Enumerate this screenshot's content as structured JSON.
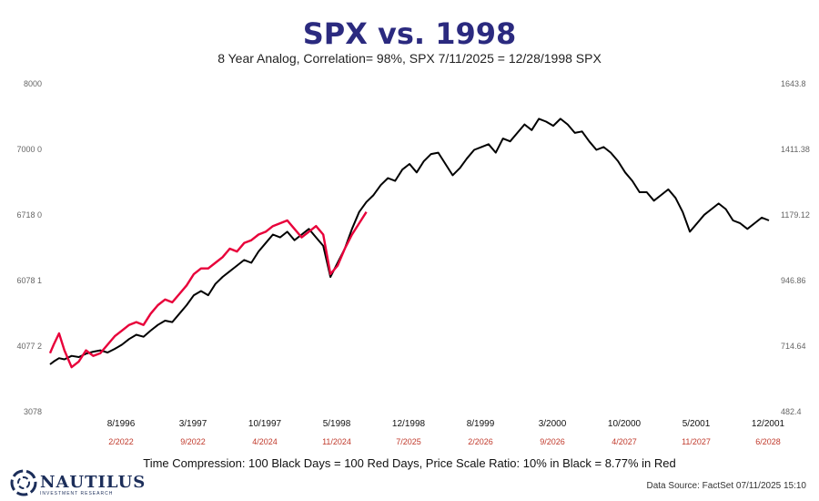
{
  "title": "SPX vs. 1998",
  "subtitle": "8 Year Analog, Correlation= 98%, SPX 7/11/2025 = 12/28/1998 SPX",
  "footer": "Time Compression: 100 Black Days = 100 Red Days, Price Scale Ratio: 10% in Black = 8.77% in Red",
  "logo": {
    "name": "NAUTILUS",
    "tagline": "INVESTMENT RESEARCH"
  },
  "source": "Data Source: FactSet   07/11/2025 15:10",
  "colors": {
    "black_series": "#000000",
    "red_series": "#e8003a",
    "red_dates": "#c0392b",
    "title": "#2b2a7f"
  },
  "chart_data": {
    "type": "line",
    "left_axis": {
      "ticks": [
        "8000",
        "7000 0",
        "6718 0",
        "6078 1",
        "4077 2",
        "3078"
      ]
    },
    "right_axis": {
      "ticks": [
        "1643.8",
        "1411.38",
        "1179.12",
        "946.86",
        "714.64",
        "482.4"
      ]
    },
    "x_ticks_black": [
      "8/1996",
      "3/1997",
      "10/1997",
      "5/1998",
      "12/1998",
      "8/1999",
      "3/2000",
      "10/2000",
      "5/2001",
      "12/2001"
    ],
    "x_ticks_red": [
      "2/2022",
      "9/2022",
      "4/2024",
      "11/2024",
      "7/2025",
      "2/2026",
      "9/2026",
      "4/2027",
      "11/2027",
      "6/2028"
    ],
    "series": [
      {
        "color": "black",
        "x": [
          0,
          2,
          5,
          8,
          12,
          16,
          20,
          24,
          28,
          32,
          36,
          40,
          44,
          48,
          52,
          56,
          60,
          64,
          68,
          72,
          76,
          80,
          84,
          88,
          92,
          96,
          100,
          104,
          108,
          112,
          116,
          120,
          124,
          128,
          132,
          136,
          140,
          144,
          148,
          152,
          156,
          160,
          164,
          168,
          172,
          176,
          180,
          184,
          188,
          192,
          196,
          200,
          204,
          208,
          212,
          216,
          220,
          224,
          228,
          232,
          236,
          240,
          244,
          248,
          252,
          256,
          260,
          264,
          268,
          272,
          276,
          280,
          284,
          288,
          292,
          296,
          300,
          304,
          308,
          312,
          316,
          320,
          324,
          328,
          332,
          336,
          340,
          344,
          348,
          352,
          356,
          360,
          364,
          368,
          372,
          376,
          380,
          384,
          388,
          392,
          396,
          400
        ],
        "y": [
          650,
          660,
          672,
          668,
          680,
          676,
          688,
          695,
          700,
          692,
          705,
          720,
          740,
          755,
          748,
          770,
          790,
          805,
          800,
          830,
          860,
          895,
          910,
          895,
          935,
          960,
          980,
          1000,
          1020,
          1010,
          1050,
          1080,
          1110,
          1100,
          1120,
          1090,
          1110,
          1130,
          1100,
          1070,
          960,
          1010,
          1060,
          1130,
          1190,
          1225,
          1250,
          1285,
          1310,
          1300,
          1340,
          1360,
          1330,
          1370,
          1395,
          1400,
          1360,
          1320,
          1345,
          1380,
          1410,
          1420,
          1430,
          1400,
          1450,
          1440,
          1470,
          1500,
          1480,
          1520,
          1510,
          1495,
          1520,
          1500,
          1470,
          1475,
          1440,
          1410,
          1420,
          1400,
          1370,
          1330,
          1300,
          1260,
          1260,
          1230,
          1250,
          1270,
          1240,
          1190,
          1120,
          1150,
          1180,
          1200,
          1220,
          1200,
          1160,
          1150,
          1130,
          1150,
          1170,
          1160
        ]
      },
      {
        "color": "red",
        "x": [
          0,
          2,
          5,
          8,
          12,
          16,
          20,
          24,
          28,
          32,
          36,
          40,
          44,
          48,
          52,
          56,
          60,
          64,
          68,
          72,
          76,
          80,
          84,
          88,
          92,
          96,
          100,
          104,
          108,
          112,
          116,
          120,
          124,
          128,
          132,
          136,
          140,
          144,
          148,
          152,
          156,
          160,
          164,
          168,
          172,
          176
        ],
        "y": [
          690,
          720,
          760,
          700,
          640,
          660,
          700,
          680,
          690,
          720,
          750,
          770,
          790,
          800,
          790,
          830,
          860,
          880,
          870,
          900,
          930,
          970,
          990,
          990,
          1010,
          1030,
          1060,
          1050,
          1080,
          1090,
          1110,
          1120,
          1140,
          1150,
          1160,
          1130,
          1100,
          1120,
          1140,
          1110,
          970,
          1000,
          1060,
          1110,
          1150,
          1190
        ]
      }
    ],
    "xlim": [
      0,
      400
    ],
    "ylim": [
      482.4,
      1643.8
    ],
    "grid": false,
    "legend": "none"
  }
}
